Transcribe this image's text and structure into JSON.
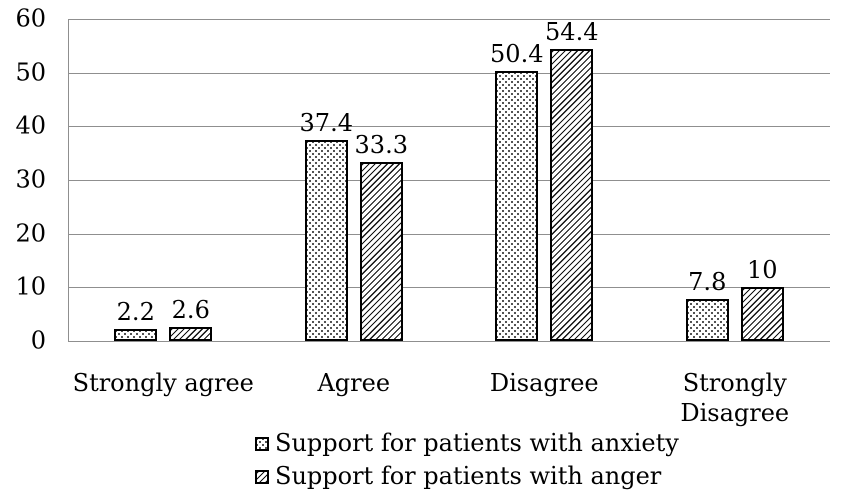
{
  "chart_data": {
    "type": "bar",
    "title": "",
    "categories": [
      "Strongly agree",
      "Agree",
      "Disagree",
      "Strongly Disagree"
    ],
    "category_display": [
      "Strongly agree",
      "Agree",
      "Disagree",
      "Strongly\nDisagree"
    ],
    "series": [
      {
        "name": "Support for patients with anxiety",
        "pattern": "dots",
        "values": [
          2.2,
          37.4,
          50.4,
          7.8
        ],
        "labels": [
          "2.2",
          "37.4",
          "50.4",
          "7.8"
        ]
      },
      {
        "name": "Support for patients with anger",
        "pattern": "diagonal-hatch",
        "values": [
          2.6,
          33.3,
          54.4,
          10
        ],
        "labels": [
          "2.6",
          "33.3",
          "54.4",
          "10"
        ]
      }
    ],
    "xlabel": "",
    "ylabel": "",
    "ylim": [
      0,
      60
    ],
    "yticks": [
      0,
      10,
      20,
      30,
      40,
      50,
      60
    ],
    "grid": true,
    "legend_position": "bottom",
    "colors": {
      "background": "#ffffff",
      "bar_fill": "#ffffff",
      "bar_border": "#000000",
      "gridline": "#8f8f8f",
      "text": "#000000"
    }
  }
}
